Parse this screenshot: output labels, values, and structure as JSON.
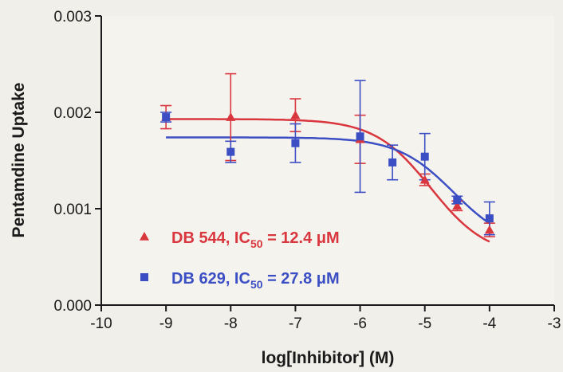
{
  "chart_data": {
    "type": "scatter",
    "xlabel": "log[Inhibitor] (M)",
    "ylabel": "Pentamdine Uptake",
    "xlim": [
      -10,
      -3
    ],
    "ylim": [
      0,
      0.003
    ],
    "xticks": [
      "-10",
      "-9",
      "-8",
      "-7",
      "-6",
      "-5",
      "-4",
      "-3"
    ],
    "yticks": [
      "0.000",
      "0.001",
      "0.002",
      "0.003"
    ],
    "grid": false,
    "legend_placement": "bottom-left",
    "series": [
      {
        "name": "DB 544",
        "legend_label": "DB 544, IC",
        "subscript": "50",
        "legend_value": " = 12.4 μM",
        "marker": "triangle",
        "color": "#d9363e",
        "points": [
          {
            "x": -9,
            "y": 0.00195,
            "err": 0.00012
          },
          {
            "x": -8,
            "y": 0.00195,
            "err": 0.00045
          },
          {
            "x": -7,
            "y": 0.00197,
            "err": 0.00017
          },
          {
            "x": -6,
            "y": 0.00172,
            "err": 0.00025
          },
          {
            "x": -5,
            "y": 0.0013,
            "err": 6e-05
          },
          {
            "x": -4.5,
            "y": 0.00103,
            "err": 5e-05
          },
          {
            "x": -4,
            "y": 0.00078,
            "err": 7e-05
          }
        ],
        "fit": {
          "top": 0.00193,
          "bottom": 0.0005,
          "logIC50": -4.907
        }
      },
      {
        "name": "DB 629",
        "legend_label": "DB 629, IC",
        "subscript": "50",
        "legend_value": " = 27.8 μM",
        "marker": "square",
        "color": "#3b4ec4",
        "points": [
          {
            "x": -9,
            "y": 0.00195,
            "err": 5e-05
          },
          {
            "x": -8,
            "y": 0.00159,
            "err": 0.00011
          },
          {
            "x": -7,
            "y": 0.00168,
            "err": 0.0002
          },
          {
            "x": -6,
            "y": 0.00175,
            "err": 0.00058
          },
          {
            "x": -5.5,
            "y": 0.00148,
            "err": 0.00018
          },
          {
            "x": -5,
            "y": 0.00154,
            "err": 0.00024
          },
          {
            "x": -4.5,
            "y": 0.00109,
            "err": 4e-05
          },
          {
            "x": -4,
            "y": 0.0009,
            "err": 0.00017
          }
        ],
        "fit": {
          "top": 0.00174,
          "bottom": 0.0006,
          "logIC50": -4.556
        }
      }
    ]
  }
}
